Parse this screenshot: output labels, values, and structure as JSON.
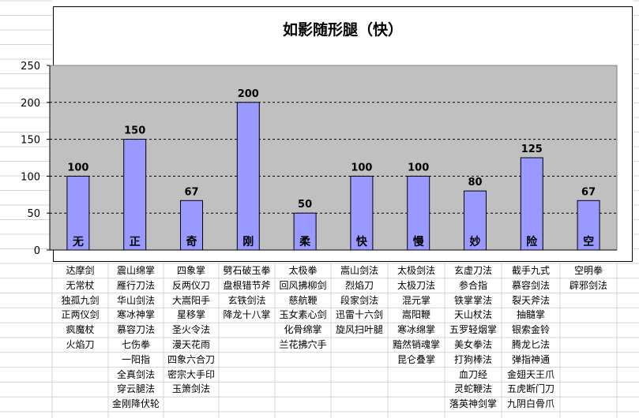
{
  "chart_data": {
    "type": "bar",
    "title": "如影随形腿（快）",
    "categories": [
      "无",
      "正",
      "奇",
      "刚",
      "柔",
      "快",
      "慢",
      "妙",
      "险",
      "空"
    ],
    "values": [
      100,
      150,
      67,
      200,
      50,
      100,
      100,
      80,
      125,
      67
    ],
    "ylim": [
      0,
      250
    ],
    "yticks": [
      0,
      50,
      100,
      150,
      200,
      250
    ],
    "grid": true,
    "legend": "none",
    "bar_color": "#9999ff",
    "plot_bg": "#c0c0c0"
  },
  "table": {
    "columns": [
      [
        "达摩剑",
        "无常杖",
        "独孤九剑",
        "正两仪剑",
        "疯魔杖",
        "火焰刀"
      ],
      [
        "震山绵掌",
        "雁行刀法",
        "华山剑法",
        "寒冰神掌",
        "慕容刀法",
        "七伤拳",
        "一阳指",
        "全真剑法",
        "穿云腿法",
        "金刚降伏轮"
      ],
      [
        "四象掌",
        "反两仪刀",
        "大嵩阳手",
        "星移掌",
        "圣火令法",
        "漫天花雨",
        "四象六合刀",
        "密宗大手印",
        "玉箫剑法"
      ],
      [
        "劈石破玉拳",
        "盘根错节斧",
        "玄铁剑法",
        "降龙十八掌"
      ],
      [
        "太极拳",
        "回风拂柳剑",
        "慈航鞭",
        "玉女素心剑",
        "化骨绵掌",
        "兰花拂穴手"
      ],
      [
        "嵩山剑法",
        "烈焰刀",
        "段家剑法",
        "迅雷十六剑",
        "旋风扫叶腿"
      ],
      [
        "太极剑法",
        "太极刀法",
        "混元掌",
        "嵩阳鞭",
        "寒冰绵掌",
        "黯然销魂掌",
        "昆仑叠掌"
      ],
      [
        "玄虚刀法",
        "参合指",
        "铁掌掌法",
        "天山杖法",
        "五罗轻烟掌",
        "美女拳法",
        "打狗棒法",
        "血刀经",
        "灵蛇鞭法",
        "落英神剑掌"
      ],
      [
        "截手九式",
        "慕容剑法",
        "裂天斧法",
        "抽髓掌",
        "银索金铃",
        "腾龙匕法",
        "弹指神通",
        "金翅天王爪",
        "五虎断门刀",
        "九阴白骨爪"
      ],
      [
        "空明拳",
        "辟邪剑法"
      ]
    ]
  }
}
